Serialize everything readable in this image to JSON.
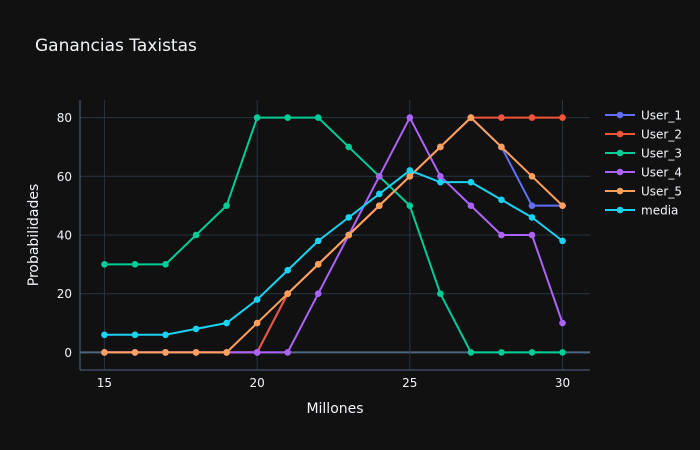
{
  "chart_data": {
    "type": "line",
    "title": "Ganancias Taxistas",
    "xlabel": "Millones",
    "ylabel": "Probabilidades",
    "x": [
      15,
      16,
      17,
      18,
      19,
      20,
      21,
      22,
      23,
      24,
      25,
      26,
      27,
      28,
      29,
      30
    ],
    "xlim": [
      14.2,
      30.9
    ],
    "ylim": [
      -6,
      86
    ],
    "xticks": [
      15,
      20,
      25,
      30
    ],
    "yticks": [
      0,
      20,
      40,
      60,
      80
    ],
    "grid": true,
    "legend": "top-right",
    "series": [
      {
        "name": "User_1",
        "color": "#636efa",
        "values": [
          0,
          0,
          0,
          0,
          0,
          0,
          20,
          30,
          40,
          50,
          60,
          70,
          80,
          70,
          50,
          50
        ]
      },
      {
        "name": "User_2",
        "color": "#EF553B",
        "values": [
          0,
          0,
          0,
          0,
          0,
          0,
          20,
          30,
          40,
          50,
          60,
          70,
          80,
          80,
          80,
          80
        ]
      },
      {
        "name": "User_3",
        "color": "#00cc96",
        "values": [
          30,
          30,
          30,
          40,
          50,
          80,
          80,
          80,
          70,
          60,
          50,
          20,
          0,
          0,
          0,
          0
        ]
      },
      {
        "name": "User_4",
        "color": "#ab63fa",
        "values": [
          0,
          0,
          0,
          0,
          0,
          0,
          0,
          20,
          40,
          60,
          80,
          60,
          50,
          40,
          40,
          10
        ]
      },
      {
        "name": "User_5",
        "color": "#FFA15A",
        "values": [
          0,
          0,
          0,
          0,
          0,
          10,
          20,
          30,
          40,
          50,
          60,
          70,
          80,
          70,
          60,
          50
        ]
      },
      {
        "name": "media",
        "color": "#19d3f3",
        "values": [
          6,
          6,
          6,
          8,
          10,
          18,
          28,
          38,
          46,
          54,
          62,
          58,
          58,
          52,
          46,
          38
        ]
      }
    ]
  }
}
